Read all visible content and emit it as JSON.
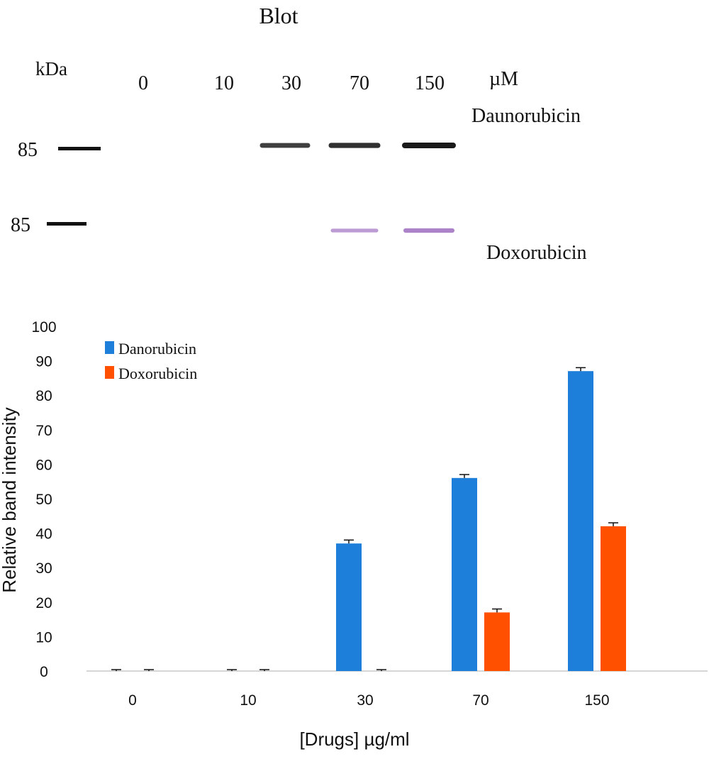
{
  "blot": {
    "title": "Blot",
    "kda_label": "kDa",
    "unit": "µM",
    "lanes": [
      "0",
      "10",
      "30",
      "70",
      "150"
    ],
    "rows": [
      {
        "marker": "85",
        "drug": "Daunorubicin",
        "band_color": "#1a1a1a",
        "intensity": [
          0,
          0,
          0.75,
          0.85,
          1.0
        ]
      },
      {
        "marker": "85",
        "drug": "Doxorubicin",
        "band_color": "#a070c0",
        "intensity": [
          0,
          0,
          0,
          0.55,
          0.8
        ]
      }
    ]
  },
  "chart_data": {
    "type": "bar",
    "categories": [
      "0",
      "10",
      "30",
      "70",
      "150"
    ],
    "series": [
      {
        "name": "Danorubicin",
        "color": "#1e7fdb",
        "values": [
          0,
          0,
          37,
          56,
          87
        ],
        "errors": [
          0,
          0,
          1,
          1,
          1
        ]
      },
      {
        "name": "Doxorubicin",
        "color": "#ff5000",
        "values": [
          0,
          0,
          0,
          17,
          42
        ],
        "errors": [
          0,
          0,
          0,
          1,
          1
        ]
      }
    ],
    "xlabel": "[Drugs] µg/ml",
    "ylabel": "Relative band intensity",
    "ylim": [
      0,
      100
    ],
    "yticks": [
      "0",
      "10",
      "20",
      "30",
      "40",
      "50",
      "60",
      "70",
      "80",
      "90",
      "100"
    ],
    "grid": false,
    "legend_position": "top-left"
  }
}
